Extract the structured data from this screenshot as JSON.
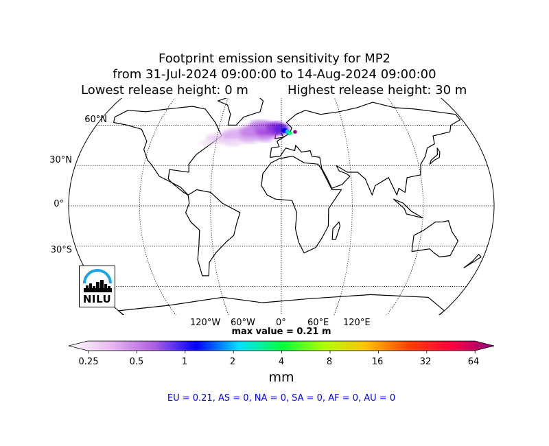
{
  "title": {
    "line1": "Footprint emission sensitivity for MP2",
    "line2": "from 31-Jul-2024 09:00:00 to 14-Aug-2024 09:00:00",
    "line3_left": "Lowest release height: 0 m",
    "line3_right": "Highest release height: 30 m"
  },
  "map": {
    "projection": "Robinson",
    "graticule": "dotted",
    "latitude_labels": [
      "60°N",
      "30°N",
      "0°",
      "30°S"
    ],
    "longitude_labels": [
      "120°W",
      "60°W",
      "0°",
      "60°E",
      "120°E"
    ],
    "plume_region": "North Atlantic / Northern Europe",
    "max_value_text": "max value = 0.21 m"
  },
  "colorbar": {
    "ticks": [
      "0.25",
      "0.5",
      "1",
      "2",
      "4",
      "8",
      "16",
      "32",
      "64"
    ],
    "unit": "mm",
    "colors": [
      "#ffffff",
      "#e8b8f0",
      "#b060e0",
      "#0000ff",
      "#00e0ff",
      "#00ff40",
      "#b0ff00",
      "#ffc000",
      "#ff4000",
      "#ff0040",
      "#8b0080"
    ]
  },
  "region_summary": "EU = 0.21,  AS = 0,  NA = 0,  SA = 0,  AF = 0,  AU = 0",
  "logo": {
    "text": "NILU",
    "arc_color": "#1aa3e8"
  }
}
